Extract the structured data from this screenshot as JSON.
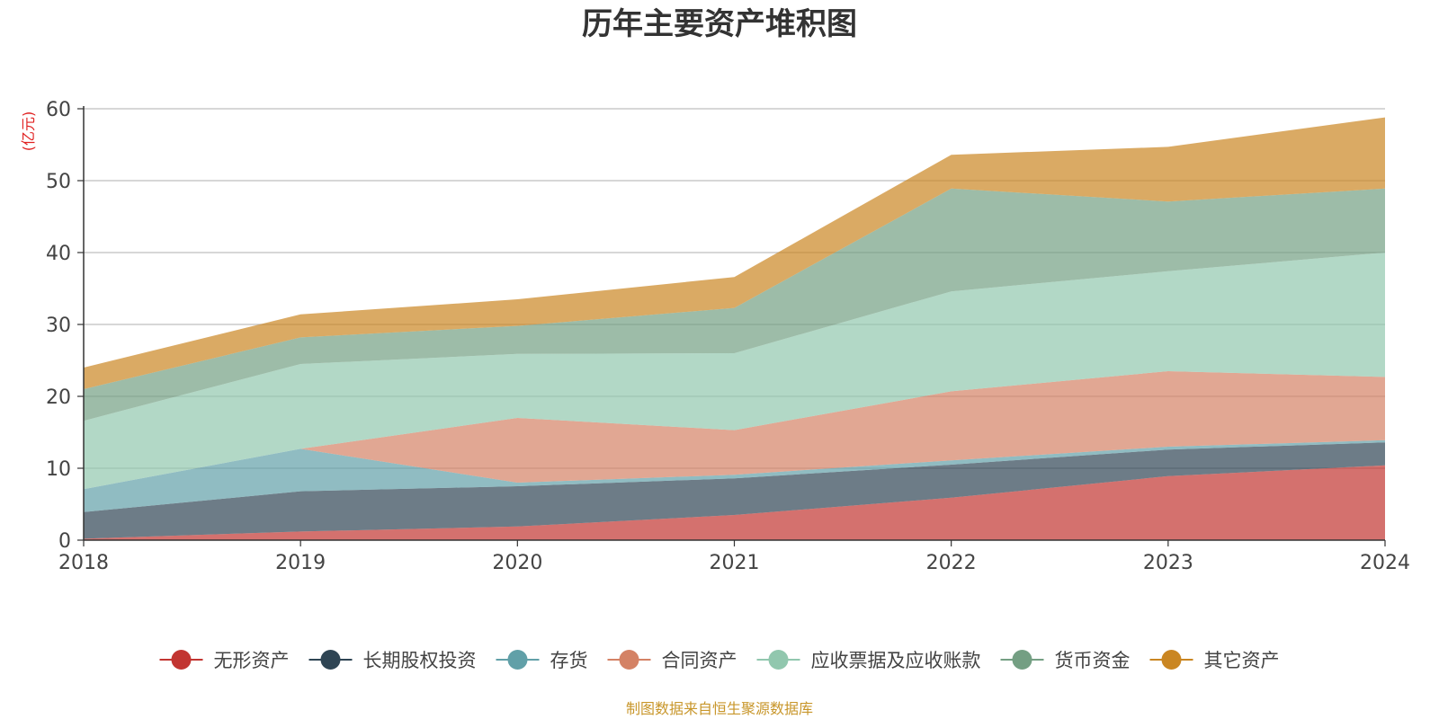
{
  "chart_data": {
    "type": "area",
    "stacked": true,
    "title": "历年主要资产堆积图",
    "ylabel": "(亿元)",
    "xlabel": "",
    "source": "制图数据来自恒生聚源数据库",
    "categories": [
      "2018",
      "2019",
      "2020",
      "2021",
      "2022",
      "2023",
      "2024"
    ],
    "ylim": [
      0,
      60
    ],
    "yticks": [
      0,
      10,
      20,
      30,
      40,
      50,
      60
    ],
    "grid": true,
    "legend_position": "bottom",
    "series": [
      {
        "name": "无形资产",
        "color": "#c23531",
        "values": [
          0.2,
          1.2,
          1.9,
          3.5,
          5.9,
          8.9,
          10.4
        ]
      },
      {
        "name": "长期股权投资",
        "color": "#2f4554",
        "values": [
          3.7,
          5.6,
          5.6,
          5.1,
          4.6,
          3.7,
          3.2
        ]
      },
      {
        "name": "存货",
        "color": "#61a0a8",
        "values": [
          3.2,
          5.9,
          0.5,
          0.5,
          0.6,
          0.4,
          0.3
        ]
      },
      {
        "name": "合同资产",
        "color": "#d48265",
        "values": [
          0.0,
          0.0,
          9.0,
          6.2,
          9.6,
          10.5,
          8.8
        ]
      },
      {
        "name": "应收票据及应收账款",
        "color": "#91c7ae",
        "values": [
          9.5,
          11.8,
          8.9,
          10.7,
          13.9,
          13.9,
          17.3
        ]
      },
      {
        "name": "货币资金",
        "color": "#749f83",
        "values": [
          4.4,
          3.7,
          3.9,
          6.3,
          14.3,
          9.7,
          8.9
        ]
      },
      {
        "name": "其它资产",
        "color": "#ca8622",
        "values": [
          3.0,
          3.2,
          3.7,
          4.3,
          4.7,
          7.6,
          9.9
        ]
      }
    ]
  }
}
